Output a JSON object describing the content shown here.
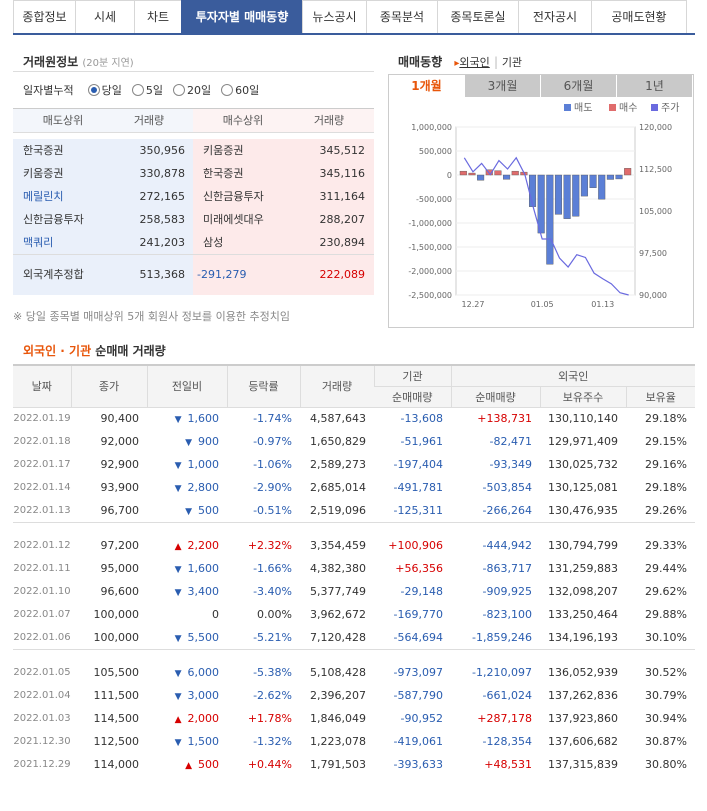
{
  "tabs": [
    "종합정보",
    "시세",
    "차트",
    "투자자별 매매동향",
    "뉴스공시",
    "종목분석",
    "종목토론실",
    "전자공시",
    "공매도현황"
  ],
  "active_tab_index": 3,
  "broker_panel": {
    "title": "거래원정보",
    "subtitle": "(20분 지연)",
    "period_label": "일자별누적",
    "period_options": [
      "당일",
      "5일",
      "20일",
      "60일"
    ],
    "selected_period": "당일",
    "headers": [
      "매도상위",
      "거래량",
      "매수상위",
      "거래량"
    ],
    "rows": [
      {
        "sell_name": "한국증권",
        "sell_vol": "350,956",
        "buy_name": "키움증권",
        "buy_vol": "345,512",
        "sell_blue": false
      },
      {
        "sell_name": "키움증권",
        "sell_vol": "330,878",
        "buy_name": "한국증권",
        "buy_vol": "345,116",
        "sell_blue": false
      },
      {
        "sell_name": "메릴린치",
        "sell_vol": "272,165",
        "buy_name": "신한금융투자",
        "buy_vol": "311,164",
        "sell_blue": true
      },
      {
        "sell_name": "신한금융투자",
        "sell_vol": "258,583",
        "buy_name": "미래에셋대우",
        "buy_vol": "288,207",
        "sell_blue": false
      },
      {
        "sell_name": "맥쿼리",
        "sell_vol": "241,203",
        "buy_name": "삼성",
        "buy_vol": "230,894",
        "sell_blue": true
      }
    ],
    "foreign_total_label": "외국계추정합",
    "foreign_sell": "513,368",
    "foreign_net": "-291,279",
    "foreign_buy": "222,089",
    "note": "※ 당일 종목별 매매상위 5개 회원사 정보를 이용한 추정치임"
  },
  "trend_panel": {
    "title": "매매동향",
    "link_foreign": "외국인",
    "link_inst": "기관",
    "periods": [
      "1개월",
      "3개월",
      "6개월",
      "1년"
    ],
    "active_period_index": 0,
    "legend": [
      "매도",
      "매수",
      "주가"
    ]
  },
  "chart_data": {
    "type": "bar",
    "title": "",
    "left_axis_ticks": [
      "1,000,000",
      "500,000",
      "0",
      "-500,000",
      "-1,000,000",
      "-1,500,000",
      "-2,000,000",
      "-2,500,000"
    ],
    "right_axis_ticks": [
      "120,000",
      "112,500",
      "105,000",
      "97,500",
      "90,000"
    ],
    "x_ticks": [
      "12.27",
      "01.05",
      "01.13"
    ],
    "ylim": [
      -2500000,
      1000000
    ],
    "y2lim": [
      90000,
      120000
    ],
    "colors": {
      "sell": "#5b7fd6",
      "buy": "#e06c6c",
      "price": "#6a6adf"
    },
    "series": [
      {
        "name": "매도",
        "values": [
          0,
          0,
          -110000,
          0,
          0,
          -90000,
          0,
          0,
          -660000,
          -1210000,
          -1860000,
          -820000,
          -910000,
          -860000,
          -440000,
          -266000,
          -504000,
          -93000,
          -82000,
          0
        ]
      },
      {
        "name": "매수",
        "values": [
          80000,
          40000,
          0,
          110000,
          90000,
          0,
          80000,
          60000,
          0,
          0,
          0,
          0,
          0,
          0,
          0,
          0,
          0,
          0,
          0,
          139000
        ]
      },
      {
        "name": "주가",
        "values": [
          114500,
          112000,
          113500,
          111500,
          114000,
          112500,
          114500,
          111500,
          105500,
          100000,
          100000,
          96600,
          95000,
          97200,
          96700,
          93900,
          92900,
          92000,
          90400,
          90000
        ]
      }
    ]
  },
  "table": {
    "title_part1": "외국인 · 기관",
    "title_part2": " 순매매 거래량",
    "headers": {
      "date": "날짜",
      "close": "종가",
      "change": "전일비",
      "rate": "등락률",
      "volume": "거래량",
      "inst": "기관",
      "foreign": "외국인",
      "inst_net": "순매매량",
      "foreign_net": "순매매량",
      "holdings": "보유주수",
      "ratio": "보유율"
    },
    "groups": [
      [
        {
          "date": "2022.01.19",
          "close": "90,400",
          "dir": "down",
          "change": "1,600",
          "rate": "-1.74%",
          "volume": "4,587,643",
          "inst": "-13,608",
          "foreign": "+138,731",
          "holdings": "130,110,140",
          "ratio": "29.18%"
        },
        {
          "date": "2022.01.18",
          "close": "92,000",
          "dir": "down",
          "change": "900",
          "rate": "-0.97%",
          "volume": "1,650,829",
          "inst": "-51,961",
          "foreign": "-82,471",
          "holdings": "129,971,409",
          "ratio": "29.15%"
        },
        {
          "date": "2022.01.17",
          "close": "92,900",
          "dir": "down",
          "change": "1,000",
          "rate": "-1.06%",
          "volume": "2,589,273",
          "inst": "-197,404",
          "foreign": "-93,349",
          "holdings": "130,025,732",
          "ratio": "29.16%"
        },
        {
          "date": "2022.01.14",
          "close": "93,900",
          "dir": "down",
          "change": "2,800",
          "rate": "-2.90%",
          "volume": "2,685,014",
          "inst": "-491,781",
          "foreign": "-503,854",
          "holdings": "130,125,081",
          "ratio": "29.18%"
        },
        {
          "date": "2022.01.13",
          "close": "96,700",
          "dir": "down",
          "change": "500",
          "rate": "-0.51%",
          "volume": "2,519,096",
          "inst": "-125,311",
          "foreign": "-266,264",
          "holdings": "130,476,935",
          "ratio": "29.26%"
        }
      ],
      [
        {
          "date": "2022.01.12",
          "close": "97,200",
          "dir": "up",
          "change": "2,200",
          "rate": "+2.32%",
          "volume": "3,354,459",
          "inst": "+100,906",
          "foreign": "-444,942",
          "holdings": "130,794,799",
          "ratio": "29.33%"
        },
        {
          "date": "2022.01.11",
          "close": "95,000",
          "dir": "down",
          "change": "1,600",
          "rate": "-1.66%",
          "volume": "4,382,380",
          "inst": "+56,356",
          "foreign": "-863,717",
          "holdings": "131,259,883",
          "ratio": "29.44%"
        },
        {
          "date": "2022.01.10",
          "close": "96,600",
          "dir": "down",
          "change": "3,400",
          "rate": "-3.40%",
          "volume": "5,377,749",
          "inst": "-29,148",
          "foreign": "-909,925",
          "holdings": "132,098,207",
          "ratio": "29.62%"
        },
        {
          "date": "2022.01.07",
          "close": "100,000",
          "dir": "none",
          "change": "0",
          "rate": "0.00%",
          "volume": "3,962,672",
          "inst": "-169,770",
          "foreign": "-823,100",
          "holdings": "133,250,464",
          "ratio": "29.88%"
        },
        {
          "date": "2022.01.06",
          "close": "100,000",
          "dir": "down",
          "change": "5,500",
          "rate": "-5.21%",
          "volume": "7,120,428",
          "inst": "-564,694",
          "foreign": "-1,859,246",
          "holdings": "134,196,193",
          "ratio": "30.10%"
        }
      ],
      [
        {
          "date": "2022.01.05",
          "close": "105,500",
          "dir": "down",
          "change": "6,000",
          "rate": "-5.38%",
          "volume": "5,108,428",
          "inst": "-973,097",
          "foreign": "-1,210,097",
          "holdings": "136,052,939",
          "ratio": "30.52%"
        },
        {
          "date": "2022.01.04",
          "close": "111,500",
          "dir": "down",
          "change": "3,000",
          "rate": "-2.62%",
          "volume": "2,396,207",
          "inst": "-587,790",
          "foreign": "-661,024",
          "holdings": "137,262,836",
          "ratio": "30.79%"
        },
        {
          "date": "2022.01.03",
          "close": "114,500",
          "dir": "up",
          "change": "2,000",
          "rate": "+1.78%",
          "volume": "1,846,049",
          "inst": "-90,952",
          "foreign": "+287,178",
          "holdings": "137,923,860",
          "ratio": "30.94%"
        },
        {
          "date": "2021.12.30",
          "close": "112,500",
          "dir": "down",
          "change": "1,500",
          "rate": "-1.32%",
          "volume": "1,223,078",
          "inst": "-419,061",
          "foreign": "-128,354",
          "holdings": "137,606,682",
          "ratio": "30.87%"
        },
        {
          "date": "2021.12.29",
          "close": "114,000",
          "dir": "up",
          "change": "500",
          "rate": "+0.44%",
          "volume": "1,791,503",
          "inst": "-393,633",
          "foreign": "+48,531",
          "holdings": "137,315,839",
          "ratio": "30.80%"
        }
      ]
    ]
  }
}
